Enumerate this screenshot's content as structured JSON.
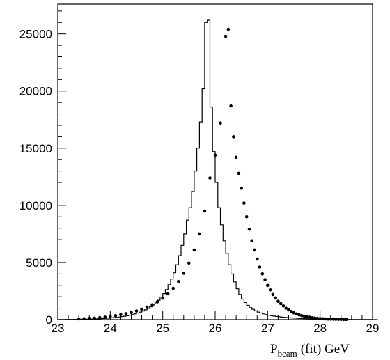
{
  "chart_data": {
    "type": "histogram",
    "title": "",
    "xlabel": {
      "main": "P",
      "subscript": "beam",
      "suffix": "(fit) GeV"
    },
    "ylabel": "",
    "xlim": [
      23,
      29
    ],
    "ylim": [
      0,
      27600
    ],
    "x_ticks": [
      23,
      24,
      25,
      26,
      27,
      28,
      29
    ],
    "x_tick_labels": [
      "23",
      "24",
      "25",
      "26",
      "27",
      "28",
      "29"
    ],
    "y_ticks": [
      0,
      5000,
      10000,
      15000,
      20000,
      25000
    ],
    "y_tick_labels": [
      "0",
      "5000",
      "10000",
      "15000",
      "20000",
      "25000"
    ],
    "grid": false,
    "legend": "none",
    "series": [
      {
        "style": "step-histogram",
        "bin_edges_start": 23.0,
        "bin_width": 0.05,
        "values": [
          10,
          12,
          14,
          16,
          18,
          20,
          22,
          25,
          28,
          31,
          35,
          40,
          45,
          52,
          60,
          70,
          80,
          95,
          110,
          130,
          150,
          175,
          200,
          230,
          265,
          300,
          340,
          390,
          445,
          510,
          580,
          660,
          750,
          860,
          980,
          1120,
          1280,
          1470,
          1700,
          1960,
          2270,
          2630,
          3050,
          3550,
          4100,
          4800,
          5600,
          6500,
          7500,
          8700,
          9800,
          11200,
          13000,
          15000,
          17300,
          20200,
          26000,
          26200,
          18600,
          14700,
          12000,
          9800,
          8300,
          6900,
          5800,
          4800,
          4000,
          3300,
          2700,
          2200,
          1800,
          1500,
          1250,
          1050,
          900,
          770,
          660,
          580,
          500,
          440,
          390,
          350,
          310,
          280,
          250,
          220,
          200,
          180,
          160,
          140,
          125,
          110,
          100,
          90,
          82,
          75,
          70,
          65,
          60,
          55,
          50,
          45,
          40,
          36,
          32,
          28,
          25,
          22,
          20,
          18,
          16,
          14,
          12,
          10,
          9,
          8,
          7,
          6,
          5,
          4,
          3,
          2
        ]
      },
      {
        "style": "points",
        "x": [
          23.4,
          23.5,
          23.6,
          23.7,
          23.8,
          23.9,
          24.0,
          24.1,
          24.2,
          24.3,
          24.4,
          24.5,
          24.6,
          24.7,
          24.8,
          24.9,
          25.0,
          25.1,
          25.2,
          25.3,
          25.4,
          25.5,
          25.6,
          25.7,
          25.8,
          25.9,
          26.0,
          26.1,
          26.2,
          26.25,
          26.3,
          26.35,
          26.4,
          26.45,
          26.5,
          26.55,
          26.6,
          26.65,
          26.7,
          26.75,
          26.8,
          26.85,
          26.9,
          26.95,
          27.0,
          27.05,
          27.1,
          27.15,
          27.2,
          27.25,
          27.3,
          27.35,
          27.4,
          27.45,
          27.5,
          27.55,
          27.6,
          27.65,
          27.7,
          27.75,
          27.8,
          27.85,
          27.9,
          27.95,
          28.0,
          28.05,
          28.1,
          28.15,
          28.2,
          28.25,
          28.3,
          28.35,
          28.4,
          28.45,
          28.5
        ],
        "y": [
          60,
          80,
          100,
          130,
          170,
          220,
          280,
          350,
          430,
          520,
          630,
          760,
          910,
          1090,
          1300,
          1560,
          1880,
          2260,
          2740,
          3330,
          4060,
          4950,
          6100,
          7500,
          9500,
          12400,
          14400,
          17200,
          24800,
          25400,
          18700,
          16000,
          14200,
          12800,
          11500,
          10200,
          9000,
          7900,
          6900,
          6100,
          5300,
          4600,
          4000,
          3500,
          3000,
          2600,
          2200,
          1900,
          1600,
          1400,
          1200,
          1000,
          850,
          720,
          600,
          500,
          420,
          350,
          290,
          240,
          200,
          165,
          135,
          110,
          90,
          75,
          60,
          50,
          40,
          35,
          28,
          22,
          18,
          14,
          10
        ]
      }
    ]
  }
}
